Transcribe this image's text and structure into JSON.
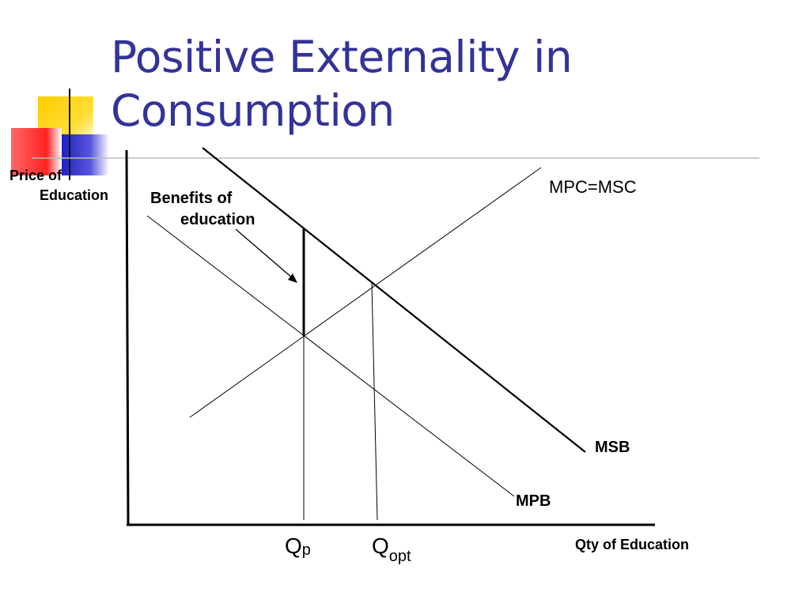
{
  "slide": {
    "title_line1": "Positive Externality in",
    "title_line2": "Consumption",
    "accent_color": "#333399"
  },
  "diagram": {
    "y_axis_label_line1": "Price of",
    "y_axis_label_line2": "Education",
    "x_axis_label": "Qty of Education",
    "curves": {
      "mpc_msc": "MPC=MSC",
      "msb": "MSB",
      "mpb": "MPB"
    },
    "annotation_line1": "Benefits of",
    "annotation_line2": "education",
    "quantities": {
      "qp_main": "Q",
      "qp_sub": "p",
      "qopt_main": "Q",
      "qopt_sub": "opt"
    }
  },
  "decoration_colors": {
    "yellow": "#ffcc00",
    "red": "#ff3333",
    "blue": "#3333cc"
  }
}
